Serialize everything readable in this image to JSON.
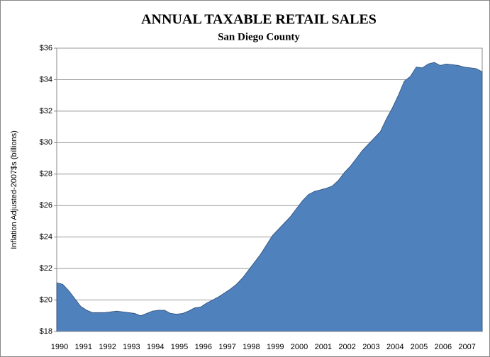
{
  "chart_data": {
    "type": "area",
    "title": "ANNUAL TAXABLE RETAIL SALES",
    "subtitle": "San Diego County",
    "y_label": "Inflation Adjusted-2007$s  (billions)",
    "color": "#4f81bd",
    "grid": true,
    "ylim": [
      18,
      36
    ],
    "yticks": [
      {
        "value": 18,
        "label": "$18"
      },
      {
        "value": 20,
        "label": "$20"
      },
      {
        "value": 22,
        "label": "$22"
      },
      {
        "value": 24,
        "label": "$24"
      },
      {
        "value": 26,
        "label": "$26"
      },
      {
        "value": 28,
        "label": "$28"
      },
      {
        "value": 30,
        "label": "$30"
      },
      {
        "value": 32,
        "label": "$32"
      },
      {
        "value": 34,
        "label": "$34"
      },
      {
        "value": 36,
        "label": "$36"
      }
    ],
    "categories": [
      "1990",
      null,
      null,
      null,
      "1991",
      null,
      null,
      null,
      "1992",
      null,
      null,
      null,
      "1993",
      null,
      null,
      null,
      "1994",
      null,
      null,
      null,
      "1995",
      null,
      null,
      null,
      "1996",
      null,
      null,
      null,
      "1997",
      null,
      null,
      null,
      "1998",
      null,
      null,
      null,
      "1999",
      null,
      null,
      null,
      "2000",
      null,
      null,
      null,
      "2001",
      null,
      null,
      null,
      "2002",
      null,
      null,
      null,
      "2003",
      null,
      null,
      null,
      "2004",
      null,
      null,
      null,
      "2005",
      null,
      null,
      null,
      "2006",
      null,
      null,
      null,
      "2007",
      null,
      null,
      null
    ],
    "values": [
      21.1,
      21.0,
      20.6,
      20.1,
      19.6,
      19.35,
      19.2,
      19.2,
      19.2,
      19.25,
      19.3,
      19.25,
      19.2,
      19.15,
      19.0,
      19.15,
      19.3,
      19.35,
      19.35,
      19.15,
      19.1,
      19.15,
      19.3,
      19.5,
      19.55,
      19.8,
      20.0,
      20.2,
      20.45,
      20.7,
      21.0,
      21.4,
      21.9,
      22.4,
      22.9,
      23.5,
      24.1,
      24.5,
      24.9,
      25.3,
      25.8,
      26.3,
      26.7,
      26.9,
      27.0,
      27.1,
      27.25,
      27.6,
      28.1,
      28.5,
      29.0,
      29.5,
      29.9,
      30.3,
      30.7,
      31.5,
      32.2,
      33.0,
      33.9,
      34.2,
      34.8,
      34.75,
      35.0,
      35.1,
      34.9,
      35.0,
      34.95,
      34.9,
      34.8,
      34.75,
      34.7,
      34.5
    ]
  }
}
